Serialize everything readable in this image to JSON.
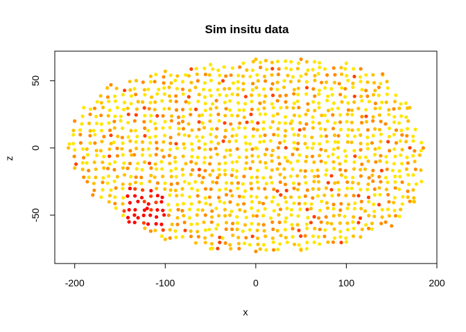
{
  "chart_data": {
    "type": "scatter",
    "title": "Sim insitu data",
    "xlabel": "x",
    "ylabel": "z",
    "xlim": [
      -222,
      200
    ],
    "ylim": [
      -86,
      72
    ],
    "x_ticks": [
      -200,
      -100,
      0,
      100,
      200
    ],
    "x_tick_labels": [
      "-200",
      "-100",
      "0",
      "100",
      "200"
    ],
    "y_ticks": [
      -50,
      0,
      50
    ],
    "y_tick_labels": [
      "-50",
      "0",
      "50"
    ],
    "grid": false,
    "legend": "none",
    "point_shape": "filled-circle",
    "color_scale": [
      "#ffe600",
      "#ffc000",
      "#ff8c00",
      "#ff4000",
      "#ff0000"
    ],
    "outline": {
      "x": [
        -207,
        -190,
        -160,
        -100,
        -50,
        0,
        50,
        100,
        140,
        170,
        185,
        183,
        175,
        150,
        100,
        50,
        0,
        -50,
        -100,
        -140,
        -180,
        -200,
        -207
      ],
      "z": [
        5,
        30,
        47,
        57,
        62,
        66,
        66,
        63,
        55,
        30,
        0,
        -25,
        -40,
        -58,
        -70,
        -76,
        -77,
        -75,
        -68,
        -55,
        -35,
        -15,
        5
      ]
    },
    "red_cluster": {
      "x": [
        -145,
        -100
      ],
      "z": [
        -57,
        -25
      ],
      "center": [
        -130,
        -52
      ]
    },
    "grid_spacing": {
      "x": 7.5,
      "z": 5
    },
    "series": [
      {
        "values": [
          {
            "x": -207,
            "z": 0,
            "c": "#ffc000"
          },
          {
            "x": -200,
            "z": 20,
            "c": "#ff8c00"
          },
          {
            "x": -190,
            "z": 30,
            "c": "#ffe600"
          },
          {
            "x": -160,
            "z": 47,
            "c": "#ff8c00"
          },
          {
            "x": -100,
            "z": 57,
            "c": "#ffc000"
          },
          {
            "x": -50,
            "z": 62,
            "c": "#ffe600"
          },
          {
            "x": 0,
            "z": 66,
            "c": "#ffc000"
          },
          {
            "x": 50,
            "z": 66,
            "c": "#ff8c00"
          },
          {
            "x": 100,
            "z": 63,
            "c": "#ffe600"
          },
          {
            "x": 140,
            "z": 55,
            "c": "#ff8c00"
          },
          {
            "x": 170,
            "z": 30,
            "c": "#ffc000"
          },
          {
            "x": 185,
            "z": 0,
            "c": "#ff8c00"
          },
          {
            "x": 183,
            "z": -25,
            "c": "#ffe600"
          },
          {
            "x": 175,
            "z": -40,
            "c": "#ffc000"
          },
          {
            "x": 150,
            "z": -58,
            "c": "#ff8c00"
          },
          {
            "x": 100,
            "z": -70,
            "c": "#ffe600"
          },
          {
            "x": 50,
            "z": -76,
            "c": "#ffc000"
          },
          {
            "x": 0,
            "z": -77,
            "c": "#ff8c00"
          },
          {
            "x": -50,
            "z": -75,
            "c": "#ffe600"
          },
          {
            "x": -100,
            "z": -68,
            "c": "#ffc000"
          },
          {
            "x": -140,
            "z": -55,
            "c": "#ff0000"
          },
          {
            "x": -130,
            "z": -52,
            "c": "#ff0000"
          },
          {
            "x": -120,
            "z": -45,
            "c": "#ff0000"
          },
          {
            "x": -180,
            "z": -35,
            "c": "#ff8c00"
          },
          {
            "x": -200,
            "z": -15,
            "c": "#ffc000"
          },
          {
            "x": 0,
            "z": 0,
            "c": "#ffe600"
          },
          {
            "x": 40,
            "z": 20,
            "c": "#ffe600"
          },
          {
            "x": -40,
            "z": -20,
            "c": "#ffc000"
          }
        ]
      }
    ]
  }
}
